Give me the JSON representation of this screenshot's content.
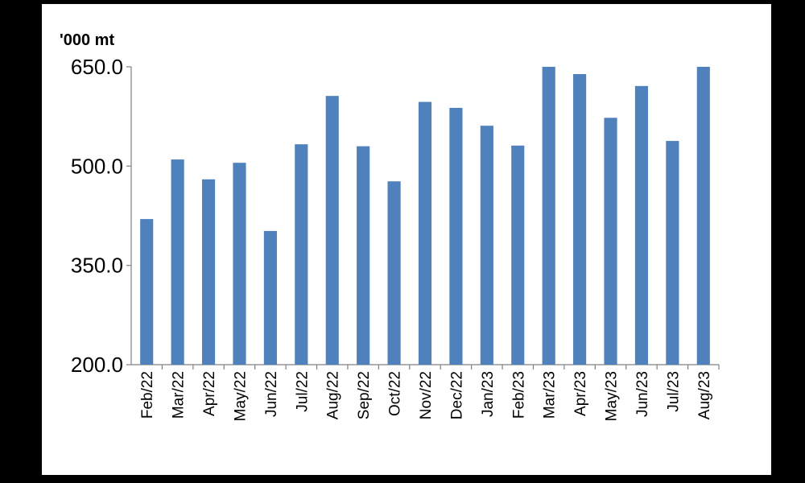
{
  "chart_data": {
    "type": "bar",
    "y_label": "'000 mt",
    "categories": [
      "Feb/22",
      "Mar/22",
      "Apr/22",
      "May/22",
      "Jun/22",
      "Jul/22",
      "Aug/22",
      "Sep/22",
      "Oct/22",
      "Nov/22",
      "Dec/22",
      "Jan/23",
      "Feb/23",
      "Mar/23",
      "Apr/23",
      "May/23",
      "Jun/23",
      "Jul/23",
      "Aug/23"
    ],
    "values": [
      420,
      510,
      480,
      505,
      402,
      533,
      606,
      530,
      477,
      597,
      588,
      561,
      531,
      650,
      639,
      573,
      621,
      538,
      650
    ],
    "color": "#4f81bd",
    "ylim": [
      200,
      650
    ],
    "yticks": [
      {
        "value": 200,
        "label": "200.0"
      },
      {
        "value": 350,
        "label": "350.0"
      },
      {
        "value": 500,
        "label": "500.0"
      },
      {
        "value": 650,
        "label": "650.0"
      }
    ],
    "grid": false
  }
}
